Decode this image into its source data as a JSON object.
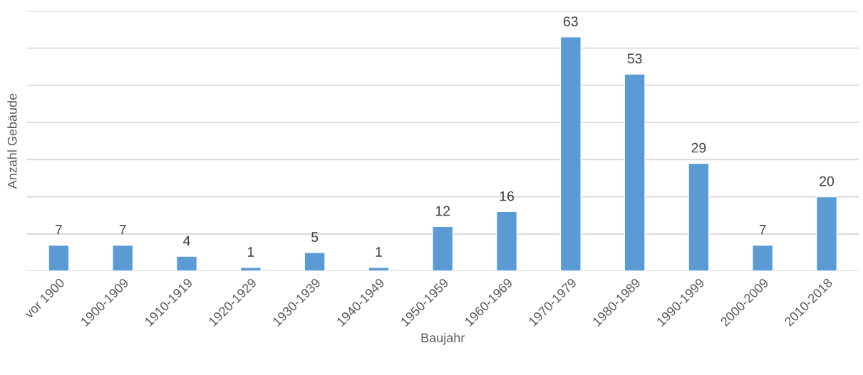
{
  "chart_data": {
    "type": "bar",
    "xlabel": "Baujahr",
    "ylabel": "Anzahl Gebäude",
    "categories": [
      "vor 1900",
      "1900-1909",
      "1910-1919",
      "1920-1929",
      "1930-1939",
      "1940-1949",
      "1950-1959",
      "1960-1969",
      "1970-1979",
      "1980-1989",
      "1990-1999",
      "2000-2009",
      "2010-2018"
    ],
    "values": [
      7,
      7,
      4,
      1,
      5,
      1,
      12,
      16,
      63,
      53,
      29,
      7,
      20
    ],
    "color": "#5b9bd5",
    "ylim": [
      0,
      70
    ],
    "yticks": [
      {
        "value": 0,
        "label": null
      },
      {
        "value": 10,
        "label": null
      },
      {
        "value": 20,
        "label": null
      },
      {
        "value": 30,
        "label": null
      },
      {
        "value": 40,
        "label": null
      },
      {
        "value": 50,
        "label": null
      },
      {
        "value": 60,
        "label": null
      },
      {
        "value": 70,
        "label": null
      }
    ],
    "grid": "y",
    "data_labels": true,
    "tick_labels": "x"
  }
}
